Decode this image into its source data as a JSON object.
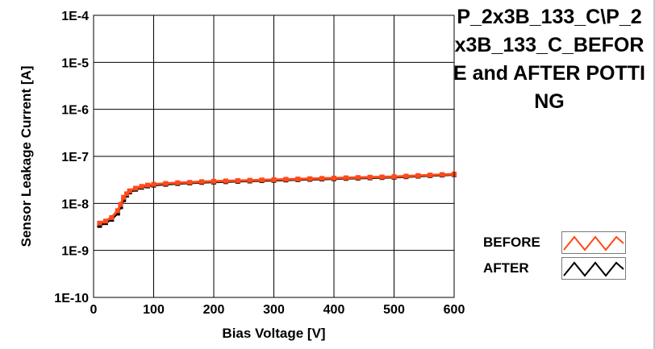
{
  "chart_data": {
    "type": "line",
    "title": "P_2x3B_133_C\\P_2x3B_133_C_BEFORE and AFTER POTTING",
    "xlabel": "Bias Voltage [V]",
    "ylabel": "Sensor Leakage Current [A]",
    "xlim": [
      0,
      600
    ],
    "ylim": [
      1e-10,
      0.0001
    ],
    "yscale": "log",
    "x_ticks": [
      0,
      100,
      200,
      300,
      400,
      500,
      600
    ],
    "x_tick_labels": [
      "0",
      "100",
      "200",
      "300",
      "400",
      "500",
      "600"
    ],
    "y_ticks": [
      1e-10,
      1e-09,
      1e-08,
      1e-07,
      1e-06,
      1e-05,
      0.0001
    ],
    "y_tick_labels": [
      "1E-10",
      "1E-9",
      "1E-8",
      "1E-7",
      "1E-6",
      "1E-5",
      "1E-4"
    ],
    "grid": true,
    "legend_position": "bottom-right",
    "series": [
      {
        "name": "BEFORE",
        "color": "#ff4a1a",
        "x": [
          10,
          20,
          30,
          40,
          45,
          50,
          55,
          60,
          70,
          80,
          90,
          100,
          120,
          140,
          160,
          180,
          200,
          220,
          240,
          260,
          280,
          300,
          320,
          340,
          360,
          380,
          400,
          420,
          440,
          460,
          480,
          500,
          520,
          540,
          560,
          580,
          600
        ],
        "y": [
          3.8e-09,
          4.2e-09,
          5e-09,
          7e-09,
          9.5e-09,
          1.35e-08,
          1.6e-08,
          1.85e-08,
          2.1e-08,
          2.3e-08,
          2.45e-08,
          2.55e-08,
          2.65e-08,
          2.75e-08,
          2.8e-08,
          2.9e-08,
          2.95e-08,
          3e-08,
          3.05e-08,
          3.1e-08,
          3.15e-08,
          3.2e-08,
          3.25e-08,
          3.3e-08,
          3.35e-08,
          3.4e-08,
          3.45e-08,
          3.5e-08,
          3.55e-08,
          3.6e-08,
          3.65e-08,
          3.7e-08,
          3.8e-08,
          3.9e-08,
          4e-08,
          4.1e-08,
          4.2e-08
        ]
      },
      {
        "name": "AFTER",
        "color": "#000000",
        "x": [
          10,
          20,
          30,
          40,
          45,
          50,
          55,
          60,
          70,
          80,
          90,
          100,
          120,
          140,
          160,
          180,
          200,
          220,
          240,
          260,
          280,
          300,
          320,
          340,
          360,
          380,
          400,
          420,
          440,
          460,
          480,
          500,
          520,
          540,
          560,
          580,
          600
        ],
        "y": [
          3.4e-09,
          3.9e-09,
          4.6e-09,
          6.2e-09,
          8.5e-09,
          1.2e-08,
          1.5e-08,
          1.75e-08,
          2e-08,
          2.2e-08,
          2.35e-08,
          2.45e-08,
          2.55e-08,
          2.65e-08,
          2.72e-08,
          2.8e-08,
          2.85e-08,
          2.9e-08,
          2.95e-08,
          3e-08,
          3.05e-08,
          3.1e-08,
          3.15e-08,
          3.2e-08,
          3.25e-08,
          3.3e-08,
          3.35e-08,
          3.4e-08,
          3.45e-08,
          3.5e-08,
          3.55e-08,
          3.6e-08,
          3.7e-08,
          3.8e-08,
          3.9e-08,
          4e-08,
          4.1e-08
        ]
      }
    ]
  }
}
